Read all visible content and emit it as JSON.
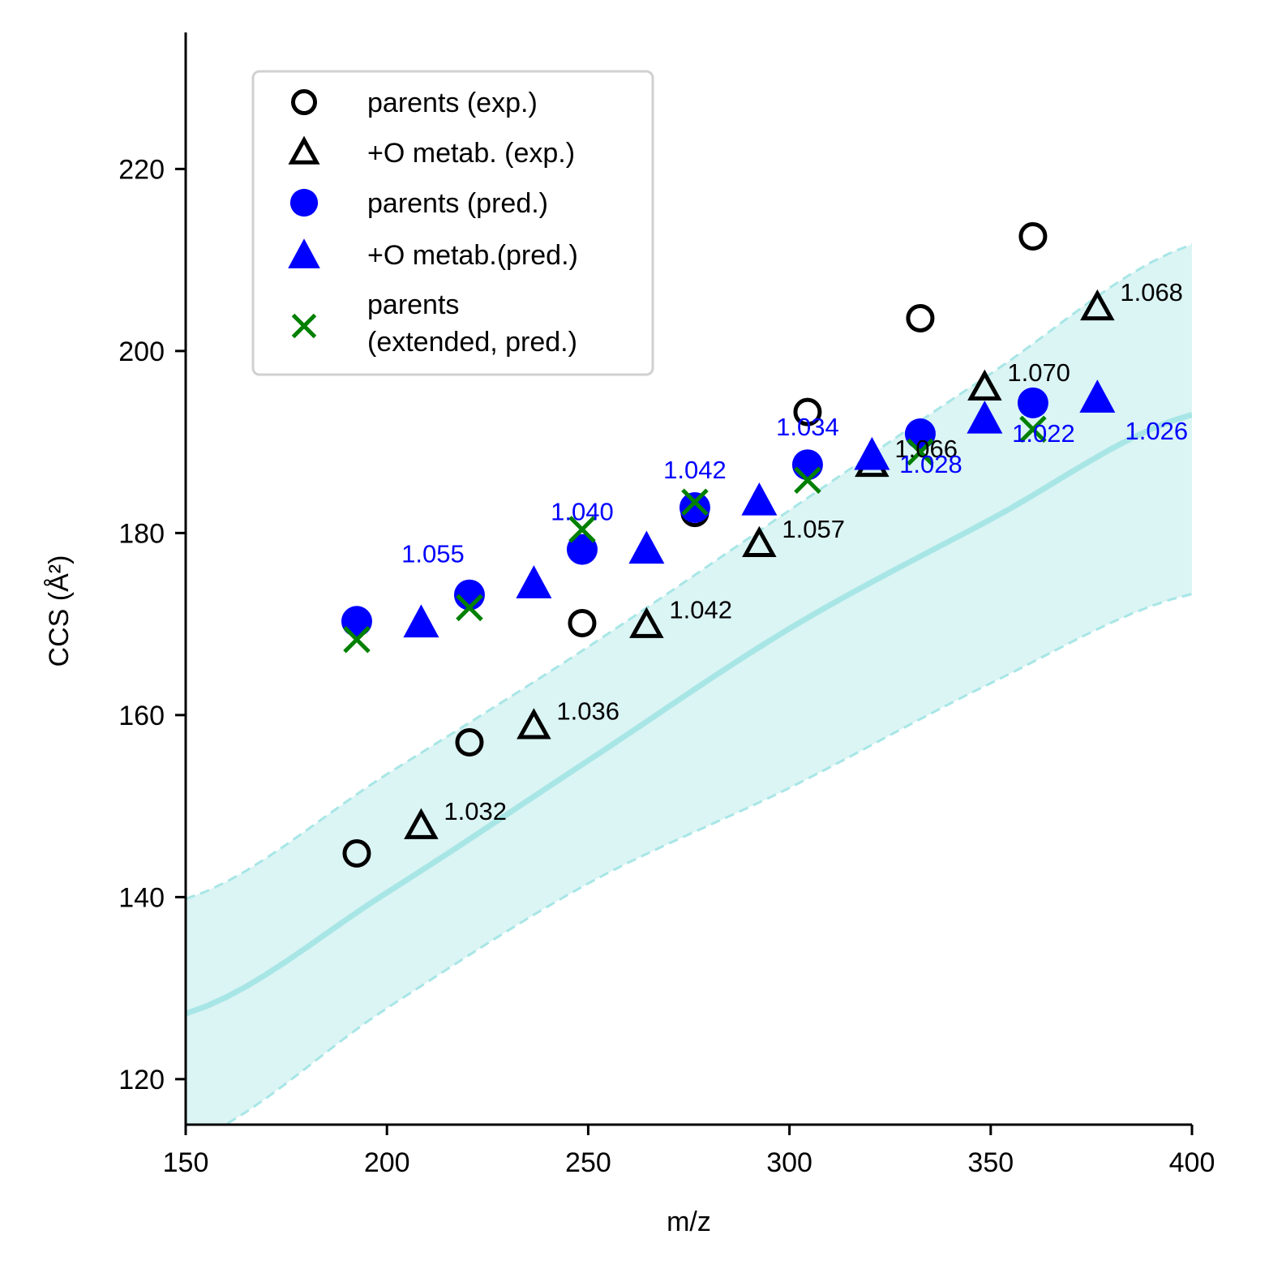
{
  "chart_data": {
    "type": "scatter",
    "title": "",
    "xlabel": "m/z",
    "ylabel": "CCS (Å²)",
    "xlim": [
      150,
      400
    ],
    "ylim": [
      115,
      235
    ],
    "xticks": [
      150,
      200,
      250,
      300,
      350,
      400
    ],
    "yticks": [
      120,
      140,
      160,
      180,
      200,
      220
    ],
    "legend_position": "top-left",
    "band": {
      "color": "#a8e6e6",
      "fill_color": "#dbf4f4",
      "center": [
        [
          150,
          127.2
        ],
        [
          200,
          140.5
        ],
        [
          250,
          155.0
        ],
        [
          300,
          169.5
        ],
        [
          350,
          181.5
        ],
        [
          400,
          193.0
        ]
      ],
      "upper": [
        [
          150,
          139.8
        ],
        [
          200,
          153.5
        ],
        [
          250,
          167.5
        ],
        [
          300,
          182.5
        ],
        [
          350,
          197.5
        ],
        [
          400,
          211.7
        ]
      ],
      "lower": [
        [
          150,
          113.0
        ],
        [
          200,
          127.8
        ],
        [
          250,
          141.5
        ],
        [
          300,
          152.0
        ],
        [
          350,
          163.5
        ],
        [
          400,
          173.3
        ]
      ]
    },
    "series": [
      {
        "name": "parents (exp.)",
        "marker": "circle-open",
        "color": "#000000",
        "points": [
          [
            192.5,
            144.8
          ],
          [
            220.5,
            157.0
          ],
          [
            248.5,
            170.1
          ],
          [
            276.5,
            182.2
          ],
          [
            304.5,
            193.3
          ],
          [
            332.5,
            203.6
          ],
          [
            360.5,
            212.6
          ]
        ]
      },
      {
        "name": "+O metab. (exp.)",
        "marker": "triangle-open",
        "color": "#000000",
        "points": [
          [
            208.5,
            147.8
          ],
          [
            236.5,
            158.8
          ],
          [
            264.5,
            169.9
          ],
          [
            292.5,
            178.8
          ],
          [
            320.5,
            187.6
          ],
          [
            348.5,
            196.0
          ],
          [
            376.5,
            204.8
          ]
        ]
      },
      {
        "name": "parents (pred.)",
        "marker": "circle-filled",
        "color": "#0000ff",
        "points": [
          [
            192.5,
            170.3
          ],
          [
            220.5,
            173.2
          ],
          [
            248.5,
            178.2
          ],
          [
            276.5,
            182.8
          ],
          [
            304.5,
            187.5
          ],
          [
            332.5,
            190.9
          ],
          [
            360.5,
            194.3
          ]
        ]
      },
      {
        "name": "+O metab.(pred.)",
        "marker": "triangle-filled",
        "color": "#0000ff",
        "points": [
          [
            208.5,
            170.2
          ],
          [
            236.5,
            174.5
          ],
          [
            264.5,
            178.3
          ],
          [
            292.5,
            183.6
          ],
          [
            320.5,
            188.6
          ],
          [
            348.5,
            192.6
          ],
          [
            376.5,
            194.9
          ]
        ]
      },
      {
        "name": "parents\n(extended, pred.)",
        "marker": "x",
        "color": "#008000",
        "points": [
          [
            192.5,
            168.3
          ],
          [
            220.5,
            171.8
          ],
          [
            248.5,
            180.4
          ],
          [
            276.5,
            183.4
          ],
          [
            304.5,
            185.8
          ],
          [
            332.5,
            188.9
          ],
          [
            360.5,
            191.4
          ]
        ]
      }
    ],
    "annotations": [
      {
        "text": "1.032",
        "x": 208.5,
        "y": 147.8,
        "color": "#000000",
        "placement": "right"
      },
      {
        "text": "1.036",
        "x": 236.5,
        "y": 158.8,
        "color": "#000000",
        "placement": "right"
      },
      {
        "text": "1.042",
        "x": 264.5,
        "y": 169.9,
        "color": "#000000",
        "placement": "right"
      },
      {
        "text": "1.057",
        "x": 292.5,
        "y": 178.8,
        "color": "#000000",
        "placement": "right"
      },
      {
        "text": "1.066",
        "x": 320.5,
        "y": 187.6,
        "color": "#000000",
        "placement": "right"
      },
      {
        "text": "1.070",
        "x": 348.5,
        "y": 196.0,
        "color": "#000000",
        "placement": "right"
      },
      {
        "text": "1.068",
        "x": 376.5,
        "y": 204.8,
        "color": "#000000",
        "placement": "right"
      },
      {
        "text": "1.055",
        "x": 220.5,
        "y": 173.2,
        "color": "#0000ff",
        "placement": "above-left"
      },
      {
        "text": "1.040",
        "x": 248.5,
        "y": 178.2,
        "color": "#0000ff",
        "placement": "above"
      },
      {
        "text": "1.042",
        "x": 276.5,
        "y": 182.8,
        "color": "#0000ff",
        "placement": "above"
      },
      {
        "text": "1.034",
        "x": 304.5,
        "y": 187.5,
        "color": "#0000ff",
        "placement": "above"
      },
      {
        "text": "1.028",
        "x": 332.5,
        "y": 190.9,
        "color": "#0000ff",
        "placement": "below"
      },
      {
        "text": "1.022",
        "x": 360.5,
        "y": 194.3,
        "color": "#0000ff",
        "placement": "below"
      },
      {
        "text": "1.026",
        "x": 376.5,
        "y": 194.9,
        "color": "#0000ff",
        "placement": "below-right"
      }
    ]
  }
}
